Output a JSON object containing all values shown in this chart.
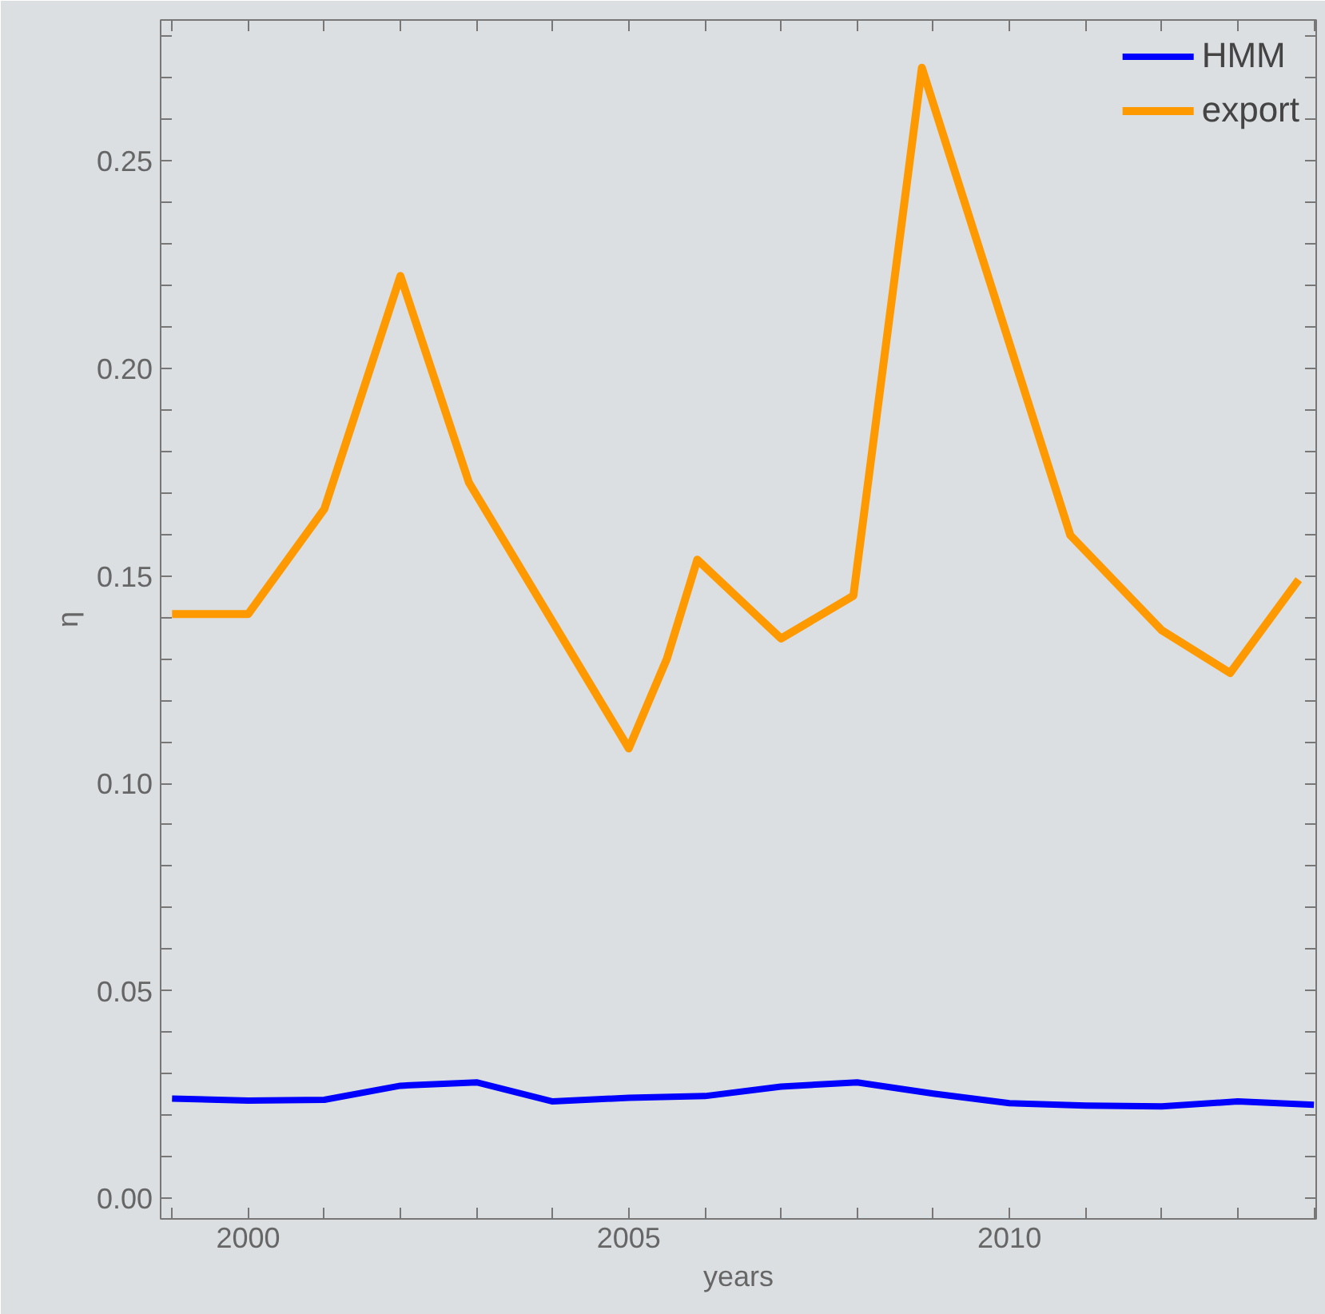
{
  "chart_data": {
    "type": "line",
    "xlabel": "years",
    "ylabel": "η",
    "xlim": [
      1998.85,
      2014.03
    ],
    "ylim": [
      -0.005,
      0.284
    ],
    "xticks": [
      {
        "value": 1999,
        "label": null
      },
      2000,
      {
        "value": 2001,
        "label": null
      },
      {
        "value": 2002,
        "label": null
      },
      {
        "value": 2003,
        "label": null
      },
      {
        "value": 2004,
        "label": null
      },
      2005,
      {
        "value": 2006,
        "label": null
      },
      {
        "value": 2007,
        "label": null
      },
      {
        "value": 2008,
        "label": null
      },
      {
        "value": 2009,
        "label": null
      },
      2010,
      {
        "value": 2011,
        "label": null
      },
      {
        "value": 2012,
        "label": null
      },
      {
        "value": 2013,
        "label": null
      },
      {
        "value": 2014,
        "label": null
      }
    ],
    "yticks": [
      {
        "value": 0,
        "label": "0.00"
      },
      {
        "value": 0.01,
        "label": null
      },
      {
        "value": 0.02,
        "label": null
      },
      {
        "value": 0.03,
        "label": null
      },
      {
        "value": 0.04,
        "label": null
      },
      {
        "value": 0.05,
        "label": "0.05"
      },
      {
        "value": 0.06,
        "label": null
      },
      {
        "value": 0.07,
        "label": null
      },
      {
        "value": 0.08,
        "label": null
      },
      {
        "value": 0.09,
        "label": null
      },
      {
        "value": 0.1,
        "label": "0.10"
      },
      {
        "value": 0.11,
        "label": null
      },
      {
        "value": 0.12,
        "label": null
      },
      {
        "value": 0.13,
        "label": null
      },
      {
        "value": 0.14,
        "label": null
      },
      {
        "value": 0.15,
        "label": "0.15"
      },
      {
        "value": 0.16,
        "label": null
      },
      {
        "value": 0.17,
        "label": null
      },
      {
        "value": 0.18,
        "label": null
      },
      {
        "value": 0.19,
        "label": null
      },
      {
        "value": 0.2,
        "label": "0.20"
      },
      {
        "value": 0.21,
        "label": null
      },
      {
        "value": 0.22,
        "label": null
      },
      {
        "value": 0.23,
        "label": null
      },
      {
        "value": 0.24,
        "label": null
      },
      {
        "value": 0.25,
        "label": "0.25"
      },
      {
        "value": 0.26,
        "label": null
      },
      {
        "value": 0.27,
        "label": null
      },
      {
        "value": 0.28,
        "label": null
      }
    ],
    "grid": false,
    "legend": "top right",
    "line_style": "solid",
    "series": [
      {
        "name": "HMM",
        "color": "#0000ff",
        "x": [
          1999,
          2000,
          2001,
          2002,
          2003,
          2004,
          2005,
          2006,
          2007,
          2008,
          2009,
          2010,
          2011,
          2012,
          2013,
          2014
        ],
        "values": [
          0.024,
          0.0235,
          0.0237,
          0.0271,
          0.0279,
          0.0233,
          0.0242,
          0.0246,
          0.0269,
          0.0279,
          0.0252,
          0.0229,
          0.0223,
          0.0221,
          0.0233,
          0.0225
        ]
      },
      {
        "name": "export",
        "color": "#ff9900",
        "x": [
          1999,
          2000,
          2001,
          2002,
          2002.9,
          2005,
          2005.5,
          2005.9,
          2007,
          2007.95,
          2008.85,
          2010.8,
          2012,
          2012.9,
          2013.8
        ],
        "values": [
          0.1408,
          0.1408,
          0.1661,
          0.2223,
          0.1725,
          0.1084,
          0.13,
          0.1539,
          0.1349,
          0.1452,
          0.2725,
          0.1598,
          0.1369,
          0.1266,
          0.1491
        ]
      }
    ]
  }
}
